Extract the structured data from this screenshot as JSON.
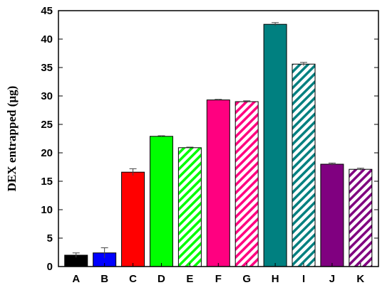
{
  "chart_data": {
    "type": "bar",
    "title": "",
    "xlabel": "",
    "ylabel": "DEX entrapped (µg)",
    "ylim": [
      0,
      45
    ],
    "yticks": [
      0,
      5,
      10,
      15,
      20,
      25,
      30,
      35,
      40,
      45
    ],
    "grid": false,
    "categories": [
      "A",
      "B",
      "C",
      "D",
      "E",
      "F",
      "G",
      "H",
      "I",
      "J",
      "K"
    ],
    "values": [
      2.0,
      2.4,
      16.6,
      22.9,
      20.9,
      29.3,
      29.0,
      42.6,
      35.6,
      18.0,
      17.1
    ],
    "errors": [
      0.4,
      0.9,
      0.6,
      0.1,
      0.1,
      0.1,
      0.15,
      0.3,
      0.3,
      0.2,
      0.2
    ],
    "bar_styles": [
      {
        "color": "#000000",
        "fill": "solid"
      },
      {
        "color": "#0000ff",
        "fill": "solid"
      },
      {
        "color": "#ff0000",
        "fill": "solid"
      },
      {
        "color": "#00ff00",
        "fill": "solid"
      },
      {
        "color": "#00ff00",
        "fill": "hatched"
      },
      {
        "color": "#ff0080",
        "fill": "solid"
      },
      {
        "color": "#ff0080",
        "fill": "hatched"
      },
      {
        "color": "#008080",
        "fill": "solid"
      },
      {
        "color": "#008080",
        "fill": "hatched"
      },
      {
        "color": "#800080",
        "fill": "solid"
      },
      {
        "color": "#800080",
        "fill": "hatched"
      }
    ]
  }
}
